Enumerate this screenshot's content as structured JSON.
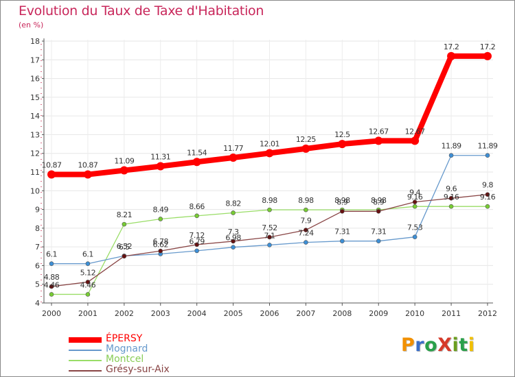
{
  "header": {
    "title": "Evolution du Taux de Taxe d'Habitation",
    "subtitle": "(en %)"
  },
  "logo": {
    "text": "ProXiti",
    "colors": [
      "#f29000",
      "#3a6ec8",
      "#2aa04a",
      "#d63a2a",
      "#6a9e1e",
      "#2aa04a",
      "#f2c000"
    ]
  },
  "colors": {
    "title": "#c8265a",
    "axis": "#555555",
    "grid": "#e6e6e6"
  },
  "chart_data": {
    "type": "line",
    "title": "Evolution du Taux de Taxe d'Habitation",
    "ylabel": "(en %)",
    "xlabel": "",
    "x": [
      "2000",
      "2001",
      "2002",
      "2003",
      "2004",
      "2005",
      "2006",
      "2007",
      "2008",
      "2009",
      "2010",
      "2011",
      "2012"
    ],
    "ylim": [
      4,
      18
    ],
    "yticks": [
      "4",
      "5",
      "6",
      "7",
      "8",
      "9",
      "10",
      "11",
      "12",
      "13",
      "14",
      "15",
      "16",
      "17",
      "18"
    ],
    "grid": true,
    "legend": "bottom-left",
    "series": [
      {
        "name": "ÉPERSY",
        "color": "#ff0000",
        "dot": "#ff0000",
        "width": 8,
        "values": [
          10.87,
          10.87,
          11.09,
          11.31,
          11.54,
          11.77,
          12.01,
          12.25,
          12.5,
          12.67,
          12.67,
          17.2,
          17.2
        ],
        "labels": [
          "10.87",
          "10.87",
          "11.09",
          "11.31",
          "11.54",
          "11.77",
          "12.01",
          "12.25",
          "12.5",
          "12.67",
          "12.67",
          "17.2",
          "17.2"
        ]
      },
      {
        "name": "Mognard",
        "color": "#6699cc",
        "dot": "#3d8fd6",
        "width": 1.3,
        "values": [
          6.1,
          6.1,
          6.52,
          6.62,
          6.79,
          6.98,
          7.1,
          7.24,
          7.31,
          7.31,
          7.53,
          11.89,
          11.89
        ],
        "labels": [
          "6.1",
          "6.1",
          "6.52",
          "6.62",
          "6.79",
          "6.98",
          "7.1",
          "7.24",
          "7.31",
          "7.31",
          "7.53",
          "11.89",
          "11.89"
        ]
      },
      {
        "name": "Montcel",
        "color": "#99dd66",
        "dot": "#77cc33",
        "width": 1.3,
        "values": [
          4.46,
          4.46,
          8.21,
          8.49,
          8.66,
          8.82,
          8.98,
          8.98,
          8.98,
          8.98,
          9.16,
          9.16,
          9.16
        ],
        "labels": [
          "4.46",
          "4.46",
          "8.21",
          "8.49",
          "8.66",
          "8.82",
          "8.98",
          "8.98",
          "8.98",
          "8.98",
          "9.16",
          "9.16",
          "9.16"
        ]
      },
      {
        "name": "Grésy-sur-Aix",
        "color": "#884444",
        "dot": "#661111",
        "width": 1.3,
        "values": [
          4.88,
          5.12,
          6.5,
          6.78,
          7.12,
          7.3,
          7.52,
          7.9,
          8.9,
          8.9,
          9.4,
          9.6,
          9.8
        ],
        "labels": [
          "4.88",
          "5.12",
          "6.5",
          "6.78",
          "7.12",
          "7.3",
          "7.52",
          "7.9",
          "8.9",
          "8.9",
          "9.4",
          "9.6",
          "9.8"
        ]
      }
    ]
  }
}
